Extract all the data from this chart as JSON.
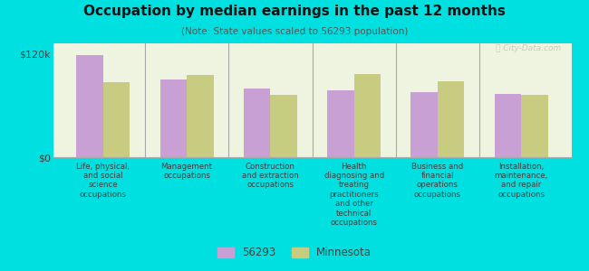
{
  "title": "Occupation by median earnings in the past 12 months",
  "subtitle": "(Note: State values scaled to 56293 population)",
  "background_color": "#00e0e0",
  "plot_bg_color": "#eef4e0",
  "categories": [
    "Life, physical,\nand social\nscience\noccupations",
    "Management\noccupations",
    "Construction\nand extraction\noccupations",
    "Health\ndiagnosing and\ntreating\npractitioners\nand other\ntechnical\noccupations",
    "Business and\nfinancial\noperations\noccupations",
    "Installation,\nmaintenance,\nand repair\noccupations"
  ],
  "values_56293": [
    118000,
    90000,
    80000,
    78000,
    75000,
    73000
  ],
  "values_minnesota": [
    87000,
    95000,
    72000,
    96000,
    88000,
    72000
  ],
  "color_56293": "#c8a0d4",
  "color_minnesota": "#c8cc80",
  "ylim": [
    0,
    132000
  ],
  "yticks": [
    0,
    120000
  ],
  "ytick_labels": [
    "$0",
    "$120k"
  ],
  "legend_label_56293": "56293",
  "legend_label_minnesota": "Minnesota",
  "watermark": "Ⓡ City-Data.com"
}
